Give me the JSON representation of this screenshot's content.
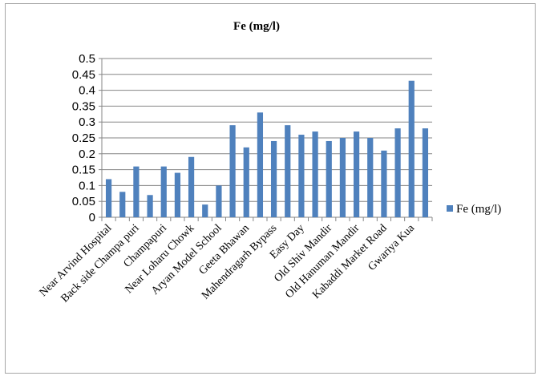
{
  "chart_data": {
    "type": "bar",
    "title": "Fe (mg/l)",
    "xlabel": "",
    "ylabel": "",
    "ylim": [
      0,
      0.5
    ],
    "yticks": [
      "0",
      "0.05",
      "0.1",
      "0.15",
      "0.2",
      "0.25",
      "0.3",
      "0.35",
      "0.4",
      "0.45",
      "0.5"
    ],
    "grid": true,
    "legend": "right",
    "color": "#4f81bd",
    "categories": [
      "Near Arvind Hospital",
      "",
      "Back side Champa puri",
      "",
      "Champapuri",
      "",
      "Near Loharu Chowk",
      "",
      "Aryan Model School",
      "",
      "Geeta Bhawan",
      "",
      "Mahendragarh Bypass",
      "",
      "Easy Day",
      "",
      "Old Shiv Mandir",
      "",
      "Old Hanuman Mandir",
      "",
      "Kabaddi Market Road",
      "",
      "Gwariya Kua",
      ""
    ],
    "series": [
      {
        "name": "Fe (mg/l)",
        "values": [
          0.12,
          0.08,
          0.16,
          0.07,
          0.16,
          0.14,
          0.19,
          0.04,
          0.1,
          0.29,
          0.22,
          0.33,
          0.24,
          0.29,
          0.26,
          0.27,
          0.24,
          0.25,
          0.27,
          0.25,
          0.21,
          0.28,
          0.43,
          0.28
        ]
      }
    ]
  }
}
